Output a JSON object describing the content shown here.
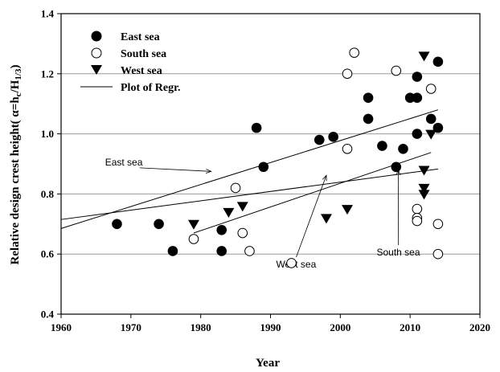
{
  "chart_data": {
    "type": "scatter",
    "xlabel": "Year",
    "ylabel_main": "Relative design crest height( α=h",
    "ylabel_sub1": "c",
    "ylabel_mid": "/H",
    "ylabel_sub2": "1/3",
    "ylabel_end": ")",
    "xlim": [
      1960,
      2020
    ],
    "ylim": [
      0.4,
      1.4
    ],
    "xticks": [
      "1960",
      "1970",
      "1980",
      "1990",
      "2000",
      "2010",
      "2020"
    ],
    "yticks": [
      "0.4",
      "0.6",
      "0.8",
      "1.0",
      "1.2",
      "1.4"
    ],
    "grid_y": [
      0.6,
      0.8,
      1.0,
      1.2
    ],
    "legend_position": "top-left",
    "legend": {
      "east": "East sea",
      "south": "South sea",
      "west": "West sea",
      "regr": "Plot of Regr."
    },
    "series": [
      {
        "name": "East sea",
        "marker": "filled-circle",
        "points": [
          [
            1968,
            0.7
          ],
          [
            1974,
            0.7
          ],
          [
            1976,
            0.61
          ],
          [
            1983,
            0.68
          ],
          [
            1983,
            0.61
          ],
          [
            1988,
            1.02
          ],
          [
            1989,
            0.89
          ],
          [
            1997,
            0.98
          ],
          [
            1999,
            0.99
          ],
          [
            2004,
            1.12
          ],
          [
            2004,
            1.05
          ],
          [
            2006,
            0.96
          ],
          [
            2008,
            0.89
          ],
          [
            2009,
            0.95
          ],
          [
            2010,
            1.12
          ],
          [
            2011,
            1.12
          ],
          [
            2011,
            1.19
          ],
          [
            2011,
            1.0
          ],
          [
            2013,
            1.05
          ],
          [
            2014,
            1.24
          ],
          [
            2014,
            1.02
          ]
        ]
      },
      {
        "name": "South sea",
        "marker": "open-circle",
        "points": [
          [
            1979,
            0.65
          ],
          [
            1985,
            0.82
          ],
          [
            1986,
            0.67
          ],
          [
            1987,
            0.61
          ],
          [
            1993,
            0.57
          ],
          [
            2001,
            1.2
          ],
          [
            2001,
            0.95
          ],
          [
            2002,
            1.27
          ],
          [
            2008,
            1.21
          ],
          [
            2011,
            0.75
          ],
          [
            2011,
            0.72
          ],
          [
            2011,
            0.71
          ],
          [
            2013,
            1.15
          ],
          [
            2014,
            0.7
          ],
          [
            2014,
            0.6
          ]
        ]
      },
      {
        "name": "West sea",
        "marker": "filled-triangle-down",
        "points": [
          [
            1979,
            0.7
          ],
          [
            1984,
            0.74
          ],
          [
            1986,
            0.76
          ],
          [
            1998,
            0.72
          ],
          [
            2001,
            0.75
          ],
          [
            2012,
            1.26
          ],
          [
            2012,
            0.88
          ],
          [
            2012,
            0.82
          ],
          [
            2012,
            0.8
          ],
          [
            2013,
            1.0
          ]
        ]
      }
    ],
    "regression_lines": [
      {
        "label": "East sea",
        "from": [
          1960,
          0.685
        ],
        "to": [
          2014,
          1.08
        ]
      },
      {
        "label": "West sea",
        "from": [
          1960,
          0.715
        ],
        "to": [
          2014,
          0.883
        ]
      },
      {
        "label": "South sea",
        "from": [
          1979,
          0.67
        ],
        "to": [
          2013,
          0.938
        ]
      }
    ],
    "annotations": [
      {
        "text": "East sea",
        "text_at": [
          1966.3,
          0.895
        ],
        "arrow_to": [
          1981.5,
          0.875
        ]
      },
      {
        "text": "West sea",
        "text_at": [
          1990.8,
          0.555
        ],
        "arrow_to": [
          1998.0,
          0.862
        ]
      },
      {
        "text": "South sea",
        "text_at": [
          2005.2,
          0.595
        ],
        "arrow_to": [
          2008.3,
          0.88
        ]
      }
    ]
  }
}
